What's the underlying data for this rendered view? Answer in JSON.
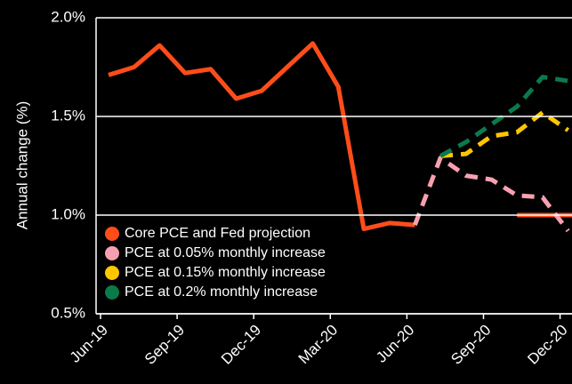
{
  "chart_data": {
    "type": "line",
    "y_label": "Annual change (%)",
    "categories": [
      "Jun-19",
      null,
      null,
      "Sep-19",
      null,
      null,
      "Dec-19",
      null,
      null,
      "Mar-20",
      null,
      null,
      "Jun-20",
      null,
      null,
      "Sep-20",
      null,
      null,
      "Dec-20",
      null
    ],
    "series": [
      {
        "name": "Core PCE and Fed projection",
        "color": "#ff4d1a",
        "values": [
          1.71,
          1.75,
          1.86,
          1.72,
          1.74,
          1.59,
          1.63,
          1.75,
          1.87,
          1.65,
          0.93,
          0.96,
          0.95,
          null,
          null,
          null,
          1.0,
          1.0,
          1.0,
          1.0
        ]
      },
      {
        "name": "PCE at 0.05% monthly increase",
        "color": "#f7a1b0",
        "dashed": true,
        "values": [
          null,
          null,
          null,
          null,
          null,
          null,
          null,
          null,
          null,
          null,
          null,
          null,
          0.95,
          1.29,
          1.2,
          1.18,
          1.1,
          1.09,
          0.92,
          null
        ]
      },
      {
        "name": "PCE at 0.15% monthly increase",
        "color": "#ffc700",
        "dashed": true,
        "values": [
          null,
          null,
          null,
          null,
          null,
          null,
          null,
          null,
          null,
          null,
          null,
          null,
          null,
          1.3,
          1.31,
          1.4,
          1.42,
          1.52,
          1.43,
          null
        ]
      },
      {
        "name": "PCE at 0.2% monthly increase",
        "color": "#0b7a4b",
        "dashed": true,
        "values": [
          null,
          null,
          null,
          null,
          null,
          null,
          null,
          null,
          null,
          null,
          null,
          null,
          null,
          1.3,
          1.37,
          1.46,
          1.55,
          1.7,
          1.68,
          null
        ]
      }
    ],
    "ylim": [
      0.5,
      2.0
    ],
    "yticks": [
      {
        "value": 0.5,
        "label": "0.5%"
      },
      {
        "value": 1.0,
        "label": "1.0%"
      },
      {
        "value": 1.5,
        "label": "1.5%"
      },
      {
        "value": 2.0,
        "label": "2.0%"
      }
    ],
    "grid": true,
    "legend": "lower left"
  }
}
